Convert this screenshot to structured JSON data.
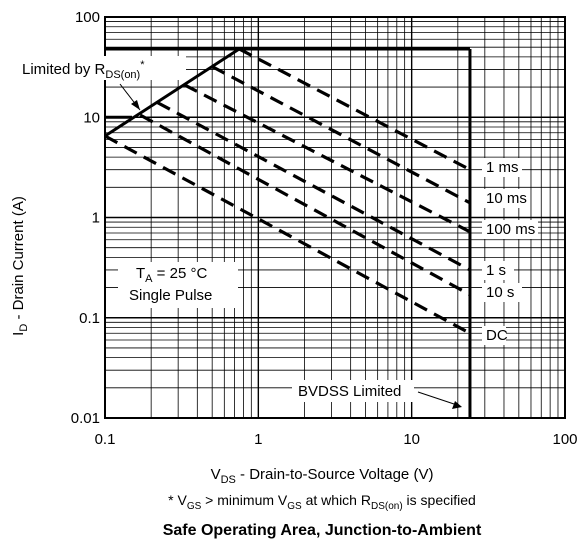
{
  "chart_data": {
    "type": "line",
    "title": "Safe Operating Area, Junction-to-Ambient",
    "xaxis": {
      "label_main": "V",
      "label_sub": "DS",
      "label_rest": " - Drain-to-Source Voltage (V)",
      "scale": "log",
      "range": [
        0.1,
        100
      ],
      "tick_values": [
        0.1,
        1,
        10,
        100
      ],
      "tick_labels": [
        "0.1",
        "1",
        "10",
        "100"
      ]
    },
    "yaxis": {
      "label_main": "I",
      "label_sub": "D",
      "label_rest": " - Drain Current (A)",
      "scale": "log",
      "range": [
        0.01,
        100
      ],
      "tick_values": [
        0.01,
        0.1,
        1,
        10,
        100
      ],
      "tick_labels": [
        "0.01",
        "0.1",
        "1",
        "10",
        "100"
      ]
    },
    "grid": true,
    "boundary": {
      "current_limit_A": 48,
      "voltage_limit_V": 24,
      "pulse_current_A": 10,
      "rds_on_line": [
        [
          0.1,
          6.5
        ],
        [
          0.75,
          48
        ]
      ]
    },
    "series": [
      {
        "name": "1 ms",
        "style": "dashed",
        "points": [
          [
            0.75,
            48
          ],
          [
            24,
            3.0
          ]
        ]
      },
      {
        "name": "10 ms",
        "style": "dashed",
        "points": [
          [
            0.5,
            32
          ],
          [
            24,
            1.4
          ]
        ]
      },
      {
        "name": "100 ms",
        "style": "dashed",
        "points": [
          [
            0.33,
            21
          ],
          [
            24,
            0.72
          ]
        ]
      },
      {
        "name": "1 s",
        "style": "dashed",
        "points": [
          [
            0.22,
            14
          ],
          [
            24,
            0.3
          ]
        ]
      },
      {
        "name": "10 s",
        "style": "dashed",
        "points": [
          [
            0.17,
            10.5
          ],
          [
            24,
            0.17
          ]
        ]
      },
      {
        "name": "DC",
        "style": "dashed",
        "points": [
          [
            0.1,
            6.5
          ],
          [
            24,
            0.07
          ]
        ]
      }
    ],
    "annotations": {
      "rds_prefix": "Limited by R",
      "rds_sub": "DS(on)",
      "rds_star": "*",
      "ta_main": "T",
      "ta_sub": "A",
      "ta_rest": " = 25 °C",
      "pulse": "Single Pulse",
      "bvdss": "BVDSS Limited"
    },
    "footnote": {
      "star": "* ",
      "v1": "V",
      "gs1": "GS",
      "mid": " > minimum ",
      "v2": "V",
      "gs2": "GS",
      "at": " at which ",
      "r": "R",
      "rsub": "DS(on)",
      "end": " is specified"
    }
  }
}
